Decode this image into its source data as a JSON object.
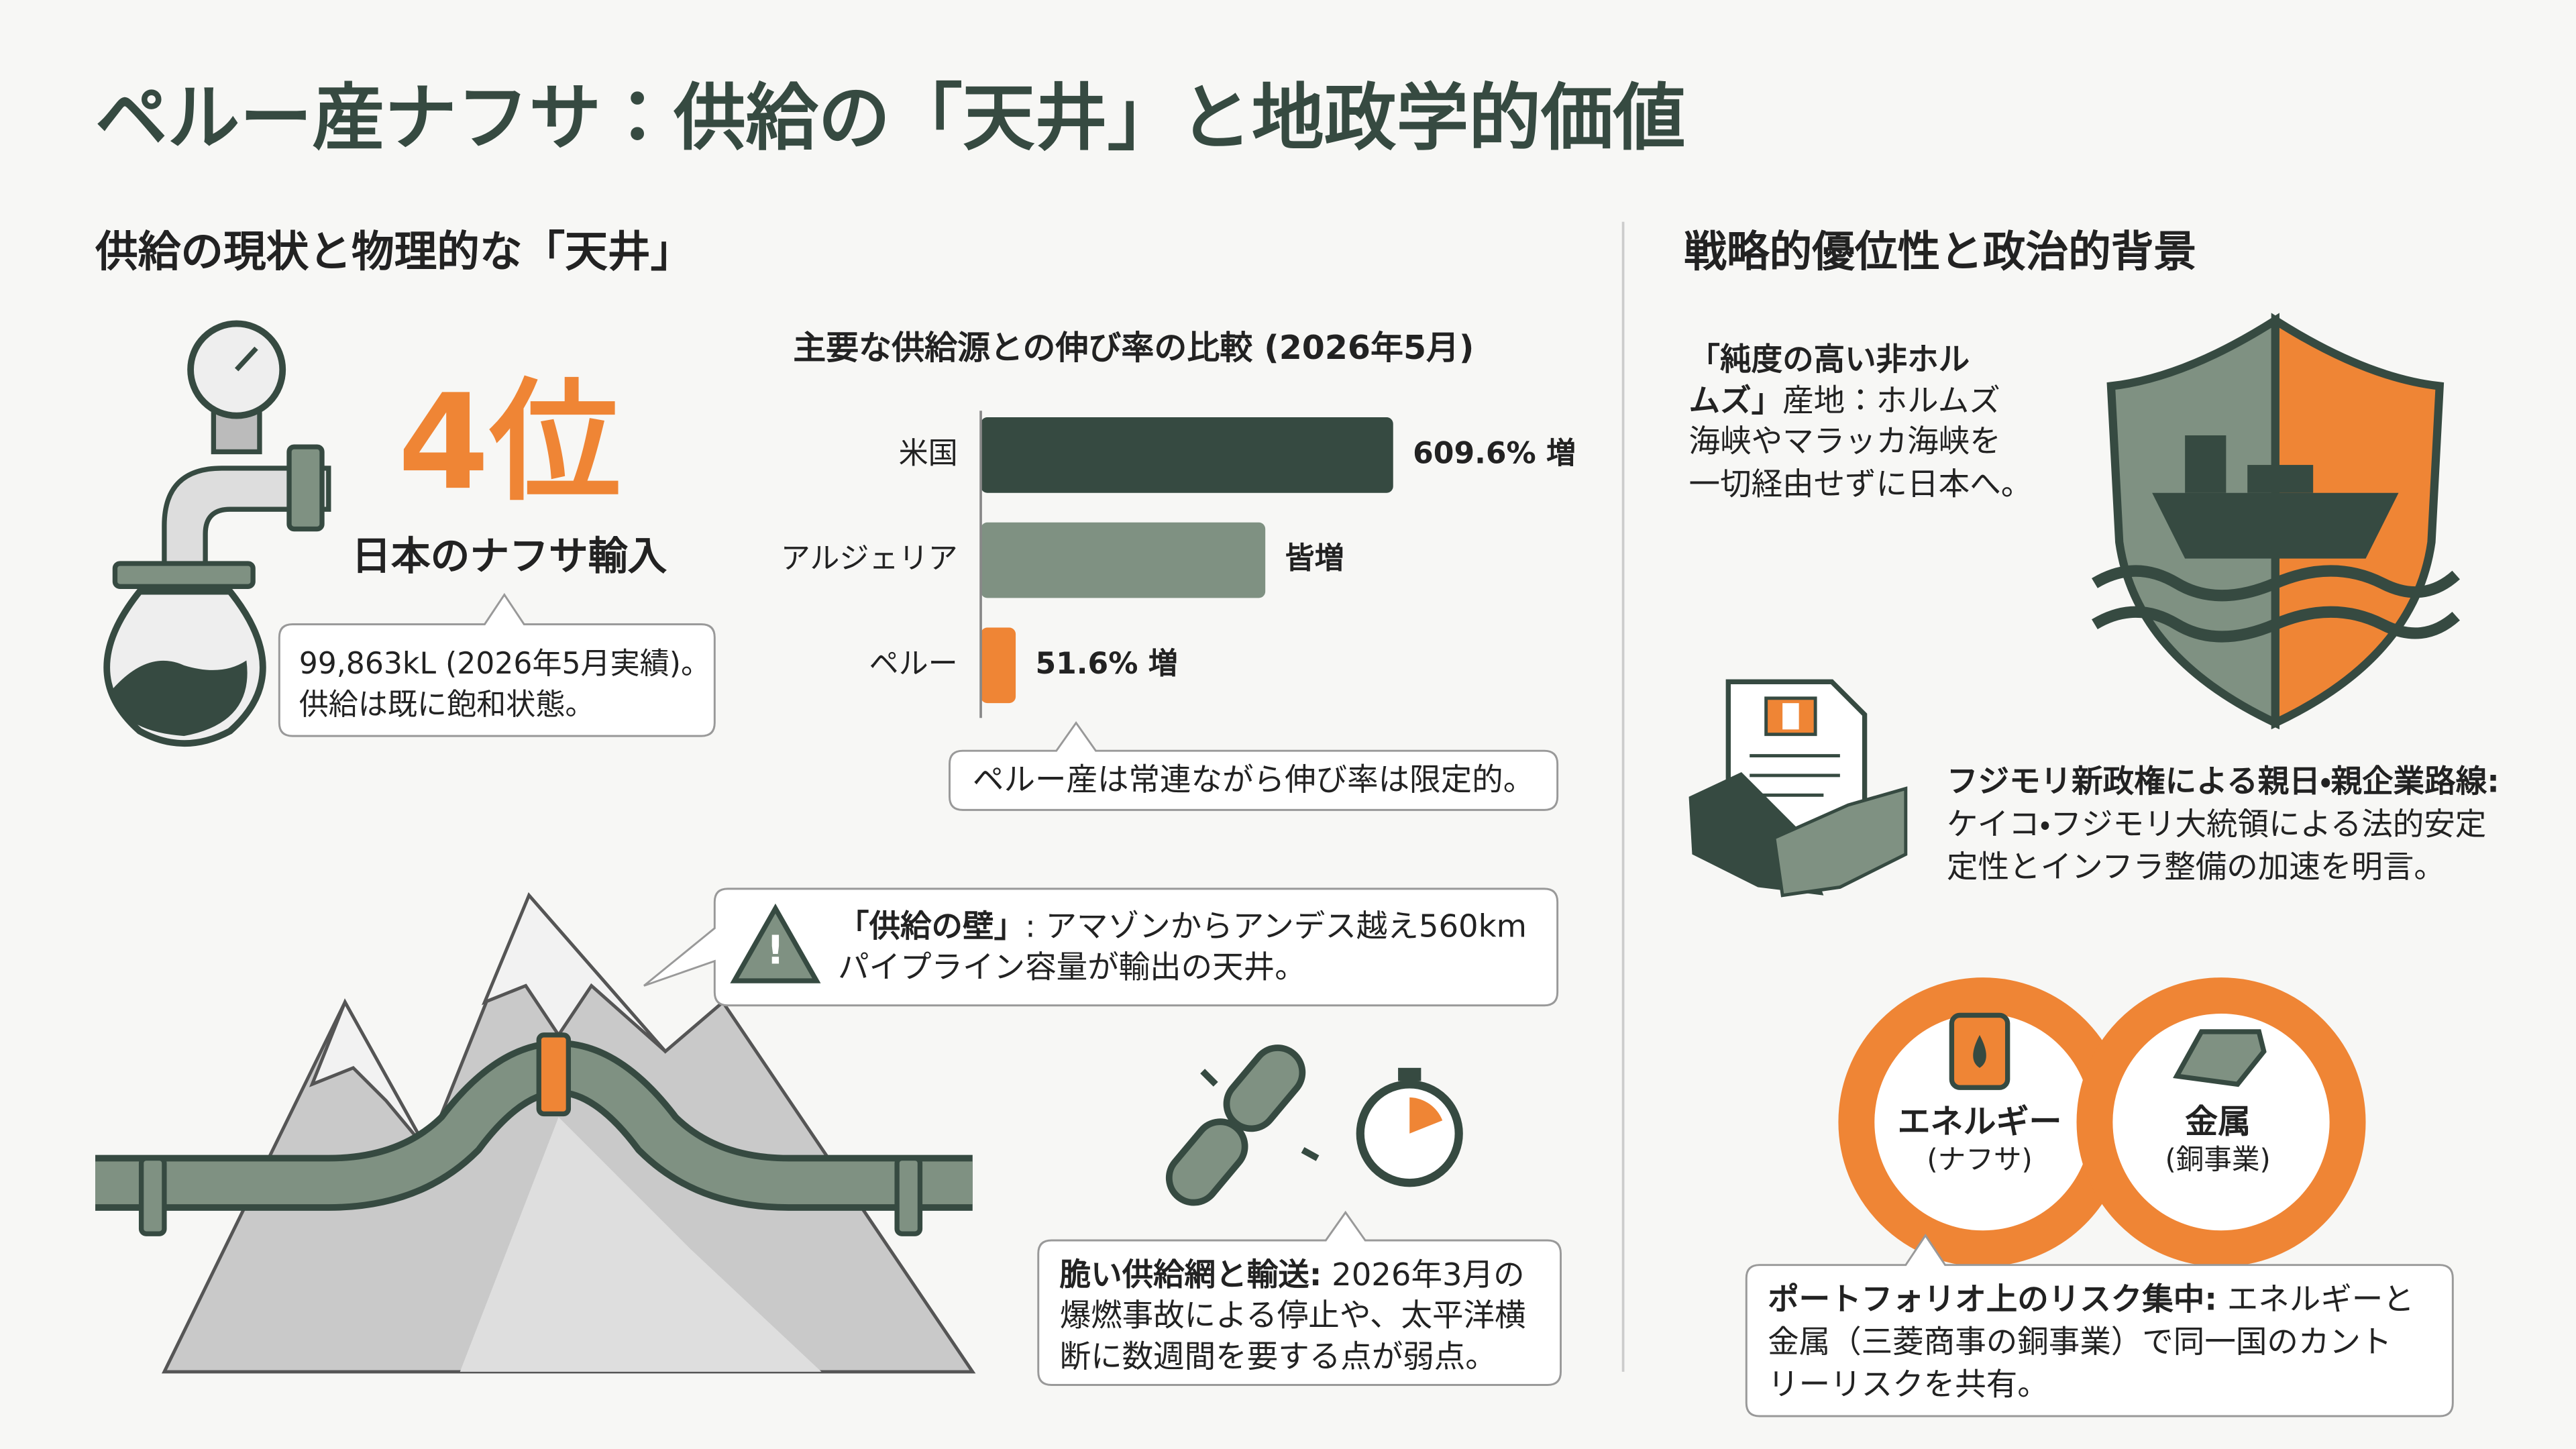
{
  "title": "ペルー産ナフサ：供給の「天井」と地政学的価値",
  "left": {
    "heading": "供給の現状と物理的な「天井」",
    "rank": "4位",
    "rank_label": "日本のナフサ輸入",
    "rank_note": [
      "99,863kL (2026年5月実績)。",
      "供給は既に飽和状態。"
    ],
    "chart_note": "ペルー産は常連ながら伸び率は限定的。",
    "wall": {
      "bold": "「供給の壁」",
      "lines": ": アマゾンからアンデス越え560km",
      "line2": "パイプライン容量が輸出の天井。"
    },
    "fragile": {
      "bold": "脆い供給網と輸送:",
      "lines": [
        " 2026年3月の",
        "爆燃事故による停止や、太平洋横",
        "断に数週間を要する点が弱点。"
      ]
    }
  },
  "chart_data": {
    "type": "bar",
    "orientation": "horizontal",
    "title": "主要な供給源との伸び率の比較 (2026年5月)",
    "categories": [
      "米国",
      "アルジェリア",
      "ペルー"
    ],
    "values": [
      609.6,
      null,
      51.6
    ],
    "value_labels": [
      "609.6% 増",
      "皆増",
      "51.6% 増"
    ],
    "colors": [
      "#364a41",
      "#7f9182",
      "#ef8535"
    ]
  },
  "right": {
    "heading": "戦略的優位性と政治的背景",
    "purity": {
      "bold": [
        "「純度の高い非ホル",
        "ムズ」"
      ],
      "lines": [
        "産地：ホルムズ",
        "海峡やマラッカ海峡を",
        "一切経由せずに日本へ。"
      ]
    },
    "fujimori": {
      "bold": "フジモリ新政権による親日・親企業路線:",
      "lines": [
        "ケイコ・フジモリ大統領による法的安定",
        "定性とインフラ整備の加速を明言。"
      ]
    },
    "energy": {
      "name": "エネルギー",
      "sub": "(ナフサ)"
    },
    "metal": {
      "name": "金属",
      "sub": "(銅事業)"
    },
    "portfolio": {
      "bold": "ポートフォリオ上のリスク集中:",
      "lines": [
        " エネルギーと",
        "金属（三菱商事の銅事業）で同一国のカント",
        "リーリスクを共有。"
      ]
    }
  }
}
